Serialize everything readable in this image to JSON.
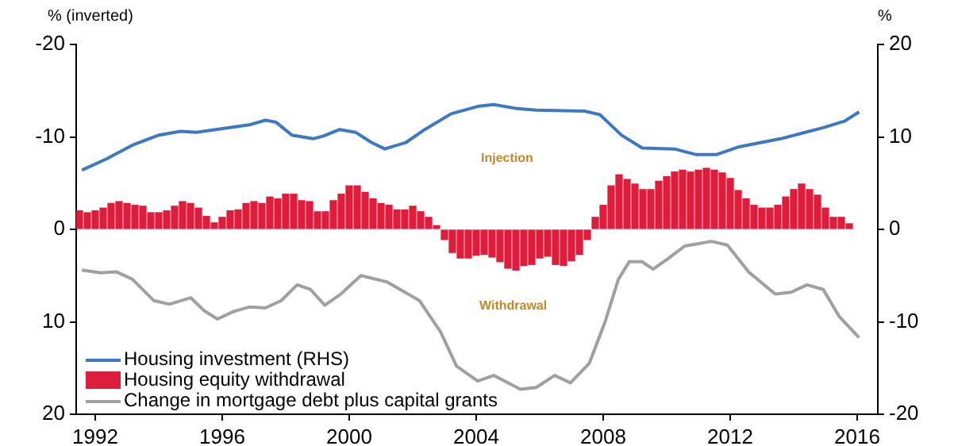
{
  "chart_data": {
    "type": "line",
    "ylabel": "% (inverted)",
    "y2label": "%",
    "xlim": [
      1991.4,
      2016.65
    ],
    "xticks": [
      1992,
      1996,
      2000,
      2004,
      2008,
      2012,
      2016
    ],
    "ylim": [
      20,
      -20
    ],
    "yticks": [
      -20,
      -10,
      0,
      10,
      20
    ],
    "y2lim": [
      -20,
      20
    ],
    "y2ticks": [
      -20,
      -10,
      0,
      10,
      20
    ],
    "grid": false,
    "legend": "bottom left",
    "annotations": [
      "Injection",
      "Withdrawal"
    ],
    "series": [
      {
        "name": "Housing investment (RHS)",
        "axis": "y2",
        "color": "#3c78c3",
        "x": [
          1991.58,
          1992.34,
          1993.17,
          1994.01,
          1994.68,
          1995.18,
          1996.02,
          1996.85,
          1997.36,
          1997.69,
          1998.19,
          1998.86,
          1999.19,
          1999.7,
          2000.2,
          2000.7,
          2001.12,
          2001.79,
          2002.38,
          2003.21,
          2004.05,
          2004.55,
          2005.22,
          2005.89,
          2007.4,
          2007.9,
          2008.57,
          2009.23,
          2010.24,
          2010.91,
          2011.58,
          2012.25,
          2013.59,
          2014.93,
          2015.6,
          2016.06
        ],
        "values": [
          6.4,
          7.6,
          9.1,
          10.2,
          10.6,
          10.5,
          10.9,
          11.3,
          11.8,
          11.6,
          10.2,
          9.8,
          10.1,
          10.8,
          10.5,
          9.4,
          8.7,
          9.4,
          10.8,
          12.5,
          13.3,
          13.5,
          13.1,
          12.9,
          12.8,
          12.4,
          10.2,
          8.8,
          8.7,
          8.1,
          8.1,
          8.9,
          9.8,
          11.0,
          11.7,
          12.7
        ]
      },
      {
        "name": "Housing equity withdrawal",
        "type": "bar",
        "color": "#dc1e3c",
        "x": [
          1991.5,
          1991.75,
          1992,
          1992.25,
          1992.5,
          1992.75,
          1993,
          1993.25,
          1993.5,
          1993.75,
          1994,
          1994.25,
          1994.5,
          1994.75,
          1995,
          1995.25,
          1995.5,
          1995.75,
          1996,
          1996.25,
          1996.5,
          1996.75,
          1997,
          1997.25,
          1997.5,
          1997.75,
          1998,
          1998.25,
          1998.5,
          1998.75,
          1999,
          1999.25,
          1999.5,
          1999.75,
          2000,
          2000.25,
          2000.5,
          2000.75,
          2001,
          2001.25,
          2001.5,
          2001.75,
          2002,
          2002.25,
          2002.5,
          2002.75,
          2003,
          2003.25,
          2003.5,
          2003.75,
          2004,
          2004.25,
          2004.5,
          2004.75,
          2005,
          2005.25,
          2005.5,
          2005.75,
          2006,
          2006.25,
          2006.5,
          2006.75,
          2007,
          2007.25,
          2007.5,
          2007.75,
          2008,
          2008.25,
          2008.5,
          2008.75,
          2009,
          2009.25,
          2009.5,
          2009.75,
          2010,
          2010.25,
          2010.5,
          2010.75,
          2011,
          2011.25,
          2011.5,
          2011.75,
          2012,
          2012.25,
          2012.5,
          2012.75,
          2013,
          2013.25,
          2013.5,
          2013.75,
          2014,
          2014.25,
          2014.5,
          2014.75,
          2015,
          2015.25,
          2015.5,
          2015.75
        ],
        "values": [
          -2.0,
          -1.8,
          -2.0,
          -2.3,
          -2.8,
          -3.0,
          -2.8,
          -2.6,
          -2.5,
          -1.8,
          -1.8,
          -2.0,
          -2.5,
          -3.0,
          -2.8,
          -2.3,
          -1.4,
          -0.7,
          -1.3,
          -2.0,
          -2.1,
          -2.8,
          -3.0,
          -2.8,
          -3.5,
          -3.3,
          -3.8,
          -3.8,
          -3.1,
          -3.0,
          -1.9,
          -1.9,
          -3.1,
          -3.8,
          -4.7,
          -4.7,
          -4.0,
          -3.3,
          -2.8,
          -2.6,
          -2.1,
          -2.1,
          -2.5,
          -1.9,
          -1.3,
          -0.4,
          1.1,
          2.5,
          3.1,
          3.1,
          2.8,
          2.7,
          3.0,
          3.5,
          4.2,
          4.4,
          3.9,
          3.8,
          3.1,
          2.9,
          3.8,
          3.9,
          3.4,
          2.7,
          1.1,
          -1.3,
          -2.6,
          -4.7,
          -5.9,
          -5.4,
          -4.9,
          -4.3,
          -4.3,
          -5.2,
          -5.7,
          -6.2,
          -6.4,
          -6.2,
          -6.4,
          -6.6,
          -6.4,
          -6.1,
          -5.5,
          -4.2,
          -3.3,
          -2.6,
          -2.3,
          -2.3,
          -2.6,
          -3.5,
          -4.3,
          -4.9,
          -4.3,
          -3.7,
          -2.3,
          -1.3,
          -1.3,
          -0.6
        ]
      },
      {
        "name": "Change in mortgage debt plus capital grants",
        "color": "#a0a0a0",
        "x": [
          1991.58,
          1992.17,
          1992.67,
          1993.17,
          1993.84,
          1994.34,
          1995.01,
          1995.43,
          1995.85,
          1996.35,
          1996.85,
          1997.36,
          1997.86,
          1998.36,
          1998.78,
          1999.23,
          1999.7,
          2000.37,
          2001.2,
          2002.21,
          2002.88,
          2003.38,
          2004.05,
          2004.55,
          2005.39,
          2005.89,
          2006.47,
          2006.97,
          2007.56,
          2008.06,
          2008.48,
          2008.82,
          2009.23,
          2009.57,
          2010.07,
          2010.57,
          2011.41,
          2011.91,
          2012.58,
          2013.42,
          2013.92,
          2014.42,
          2014.93,
          2015.43,
          2016.06
        ],
        "values": [
          4.4,
          4.7,
          4.6,
          5.4,
          7.7,
          8.1,
          7.4,
          8.8,
          9.7,
          8.9,
          8.4,
          8.5,
          7.7,
          6.0,
          6.5,
          8.2,
          7.1,
          5.0,
          5.7,
          7.7,
          11.1,
          14.8,
          16.4,
          15.8,
          17.3,
          17.1,
          15.8,
          16.6,
          14.5,
          10.0,
          5.4,
          3.5,
          3.5,
          4.3,
          3.1,
          1.8,
          1.3,
          1.7,
          4.6,
          7.0,
          6.8,
          6.0,
          6.5,
          9.4,
          11.7
        ]
      }
    ]
  }
}
